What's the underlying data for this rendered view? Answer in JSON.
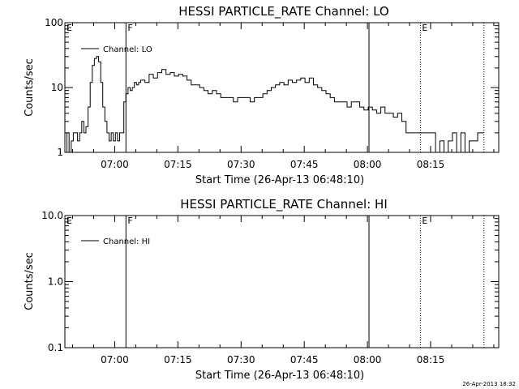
{
  "chart_data": [
    {
      "type": "line",
      "title": "HESSI PARTICLE_RATE Channel: LO",
      "xlabel": "Start Time (26-Apr-13 06:48:10)",
      "ylabel": "Counts/sec",
      "yscale": "log",
      "ylim": [
        1,
        100
      ],
      "xlim_minutes_after_start": [
        0,
        103
      ],
      "y_ticks": [
        1,
        10,
        100
      ],
      "y_tick_labels": [
        "1",
        "10",
        "100"
      ],
      "x_ticks": [
        11.83,
        26.83,
        41.83,
        56.83,
        71.83,
        86.83
      ],
      "x_tick_labels": [
        "07:00",
        "07:15",
        "07:30",
        "07:45",
        "08:00",
        "08:15"
      ],
      "legend": "top-left",
      "grid": false,
      "series": [
        {
          "name": "Channel: LO",
          "x": [
            0,
            0.5,
            1,
            1.5,
            2,
            2.5,
            3,
            3.5,
            4,
            4.5,
            5,
            5.5,
            6,
            6.5,
            7,
            7.5,
            8,
            8.5,
            9,
            9.5,
            10,
            10.5,
            11,
            11.5,
            12,
            12.5,
            13,
            13.5,
            14,
            14.5,
            15,
            15.5,
            16,
            16.5,
            17,
            17.5,
            18,
            19,
            20,
            21,
            22,
            23,
            24,
            25,
            26,
            27,
            28,
            29,
            30,
            31,
            32,
            33,
            34,
            35,
            36,
            37,
            38,
            39,
            40,
            41,
            42,
            43,
            44,
            45,
            46,
            47,
            48,
            49,
            50,
            51,
            52,
            53,
            54,
            55,
            56,
            57,
            58,
            59,
            60,
            61,
            62,
            63,
            64,
            65,
            66,
            67,
            68,
            69,
            70,
            71,
            72,
            73,
            74,
            75,
            76,
            77,
            78,
            79,
            80,
            81,
            82,
            83,
            84,
            85,
            86,
            87,
            88,
            89,
            90,
            91,
            92,
            93,
            94,
            95,
            96,
            97,
            98,
            99
          ],
          "y": [
            1,
            2,
            1,
            1.5,
            2,
            2,
            1.5,
            2,
            3,
            2,
            2.5,
            5,
            12,
            22,
            28,
            30,
            25,
            12,
            5,
            3,
            2,
            1.5,
            2,
            1.5,
            2,
            1.5,
            2,
            2,
            6,
            8,
            10,
            9,
            10,
            12,
            11,
            12,
            13,
            12,
            16,
            14,
            17,
            19,
            16,
            17,
            15,
            16,
            15,
            13,
            11,
            11,
            10,
            9,
            8,
            9,
            8,
            7,
            7,
            7,
            6,
            7,
            7,
            7,
            6,
            7,
            7,
            8,
            9,
            10,
            11,
            12,
            11,
            13,
            12,
            13,
            14,
            12,
            14,
            11,
            10,
            9,
            8,
            7,
            6,
            6,
            6,
            5,
            6,
            6,
            5,
            4.5,
            5,
            4.5,
            4,
            5,
            4,
            4,
            3.5,
            4,
            3,
            2,
            2,
            2,
            2,
            2,
            2,
            2,
            1,
            1.5,
            1,
            1.5,
            2,
            1,
            2,
            1,
            1.5,
            1.5,
            2,
            2
          ]
        }
      ],
      "annotations": [
        {
          "label": "E",
          "x_minutes": 0,
          "style": "solid"
        },
        {
          "label": "F",
          "x_minutes": 14.5,
          "style": "solid"
        },
        {
          "label": "",
          "x_minutes": 72.2,
          "style": "solid"
        },
        {
          "label": "E",
          "x_minutes": 84.4,
          "style": "dotted"
        },
        {
          "label": "",
          "x_minutes": 99.5,
          "style": "dotted"
        }
      ]
    },
    {
      "type": "line",
      "title": "HESSI PARTICLE_RATE Channel: HI",
      "xlabel": "Start Time (26-Apr-13 06:48:10)",
      "ylabel": "Counts/sec",
      "yscale": "log",
      "ylim": [
        0.1,
        10.0
      ],
      "xlim_minutes_after_start": [
        0,
        103
      ],
      "y_ticks": [
        0.1,
        1.0,
        10.0
      ],
      "y_tick_labels": [
        "0.1",
        "1.0",
        "10.0"
      ],
      "x_ticks": [
        11.83,
        26.83,
        41.83,
        56.83,
        71.83,
        86.83
      ],
      "x_tick_labels": [
        "07:00",
        "07:15",
        "07:30",
        "07:45",
        "08:00",
        "08:15"
      ],
      "legend": "top-left",
      "grid": false,
      "series": [
        {
          "name": "Channel: HI",
          "x": [],
          "y": []
        }
      ],
      "annotations": [
        {
          "label": "E",
          "x_minutes": 0,
          "style": "solid"
        },
        {
          "label": "F",
          "x_minutes": 14.5,
          "style": "solid"
        },
        {
          "label": "",
          "x_minutes": 72.2,
          "style": "solid"
        },
        {
          "label": "E",
          "x_minutes": 84.4,
          "style": "dotted"
        },
        {
          "label": "",
          "x_minutes": 99.5,
          "style": "dotted"
        }
      ]
    }
  ],
  "footer_timestamp": "26-Apr-2013 18:32"
}
